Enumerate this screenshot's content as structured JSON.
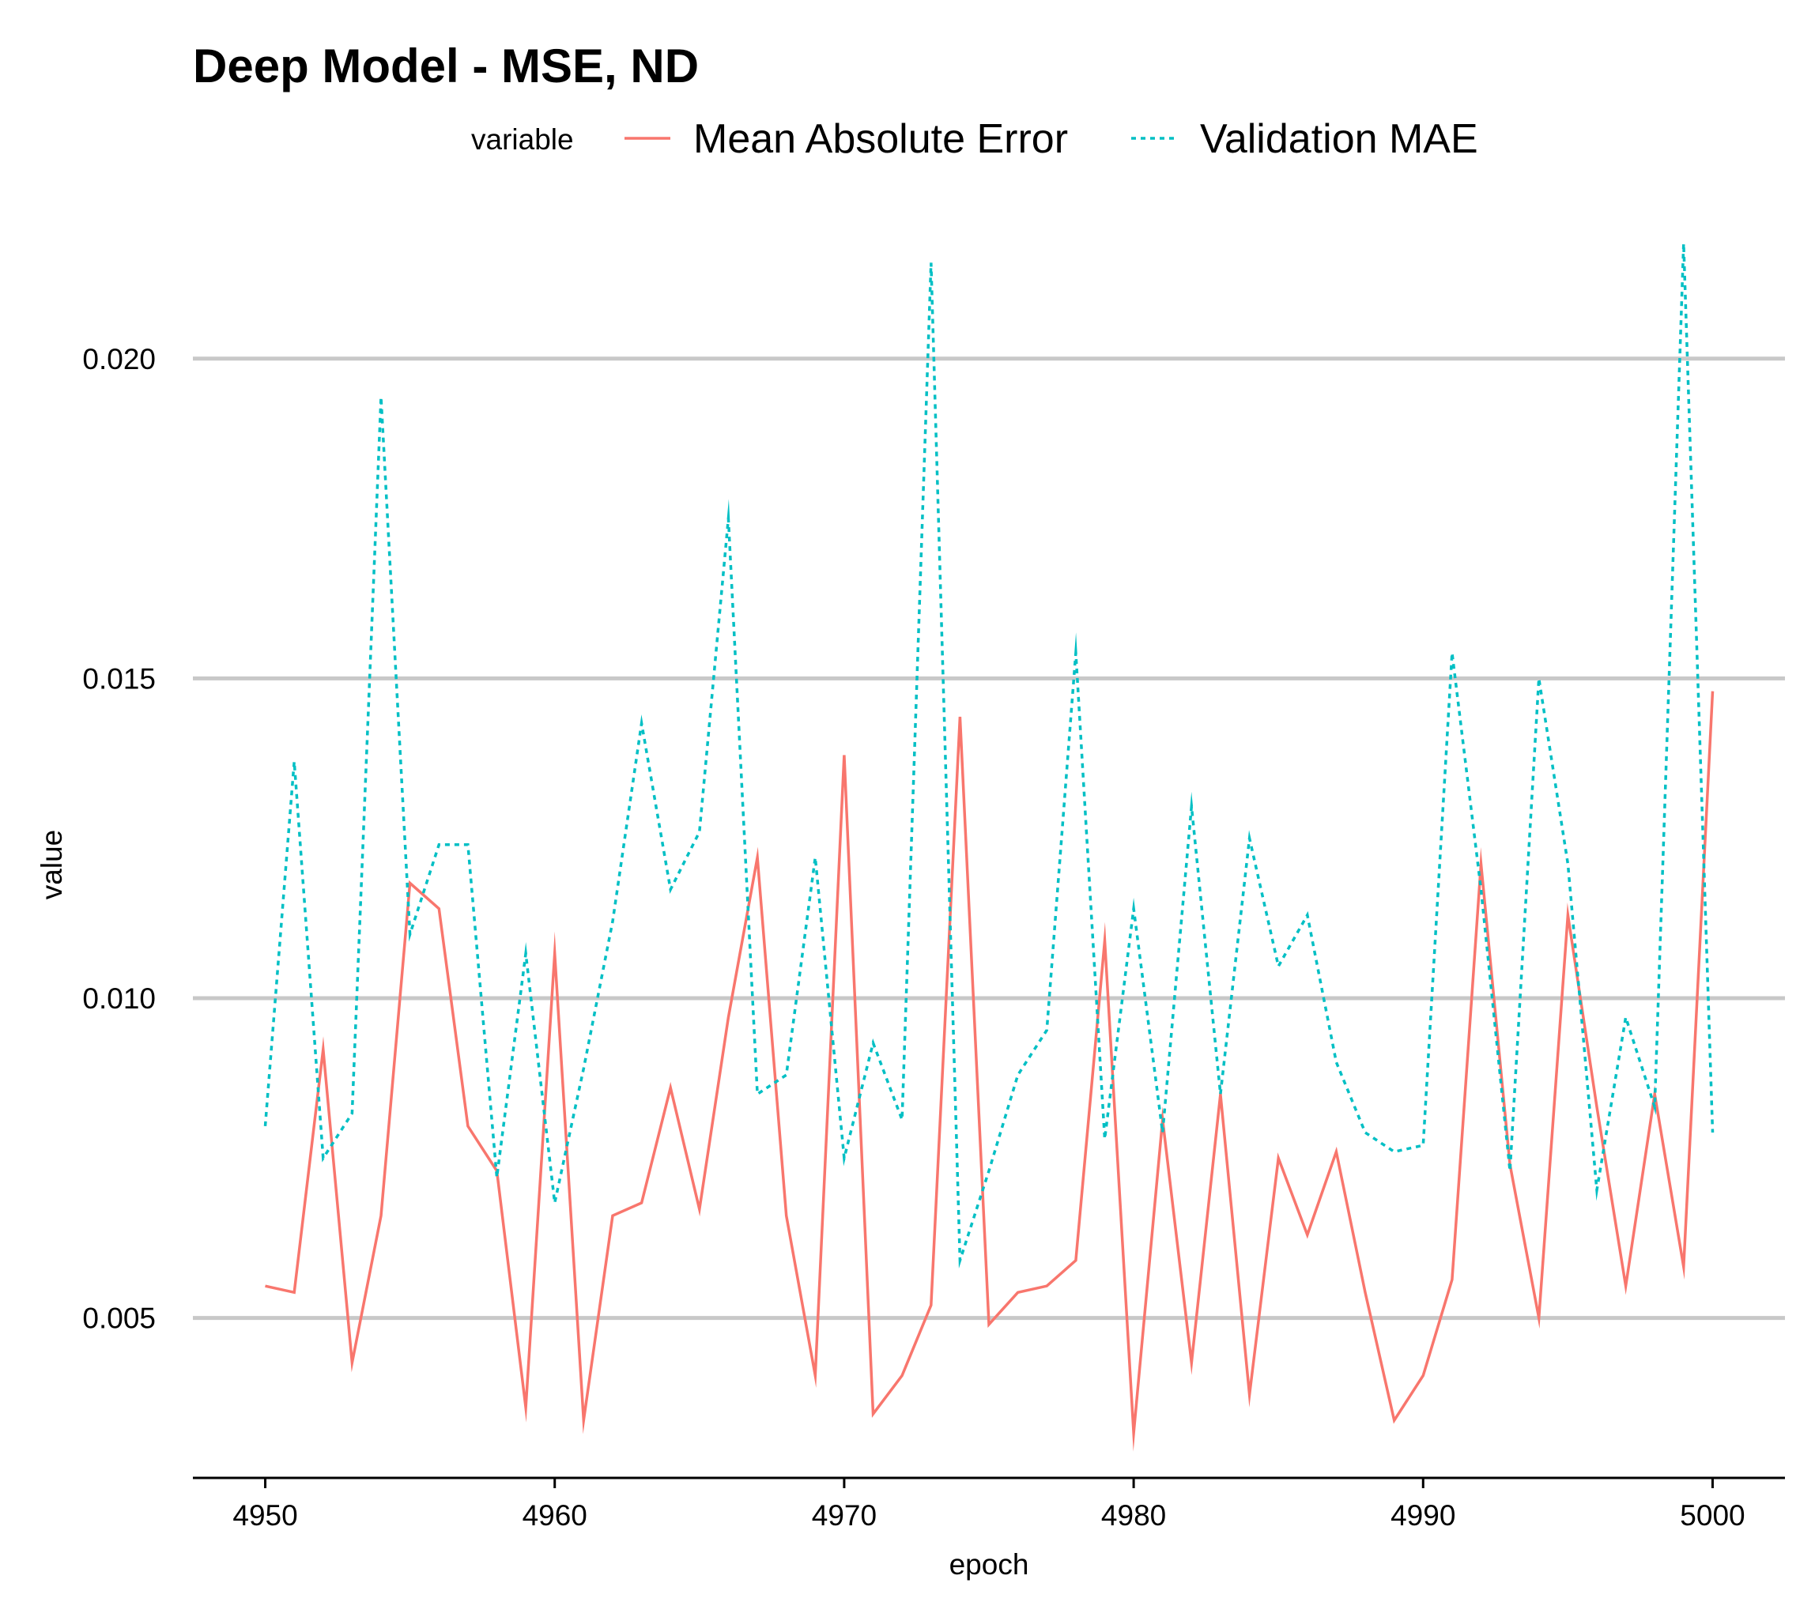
{
  "chart_data": {
    "type": "line",
    "title": "Deep Model - MSE, ND",
    "xlabel": "epoch",
    "ylabel": "value",
    "legend_title": "variable",
    "legend_position": "top",
    "grid": "major-y",
    "xlim": [
      4947.5,
      5002.5
    ],
    "ylim": [
      0.0025,
      0.0219
    ],
    "x_ticks": [
      4950,
      4960,
      4970,
      4980,
      4990,
      5000
    ],
    "x_tick_labels": [
      "4950",
      "4960",
      "4970",
      "4980",
      "4990",
      "5000"
    ],
    "y_ticks": [
      0.005,
      0.01,
      0.015,
      0.02
    ],
    "y_tick_labels": [
      "0.005",
      "0.010",
      "0.015",
      "0.020"
    ],
    "x": [
      4950,
      4951,
      4952,
      4953,
      4954,
      4955,
      4956,
      4957,
      4958,
      4959,
      4960,
      4961,
      4962,
      4963,
      4964,
      4965,
      4966,
      4967,
      4968,
      4969,
      4970,
      4971,
      4972,
      4973,
      4974,
      4975,
      4976,
      4977,
      4978,
      4979,
      4980,
      4981,
      4982,
      4983,
      4984,
      4985,
      4986,
      4987,
      4988,
      4989,
      4990,
      4991,
      4992,
      4993,
      4994,
      4995,
      4996,
      4997,
      4998,
      4999,
      5000
    ],
    "series": [
      {
        "name": "Mean Absolute Error",
        "color": "#F8766D",
        "dash": "solid",
        "values": [
          0.0055,
          0.0054,
          0.0092,
          0.0043,
          0.0066,
          0.0118,
          0.0114,
          0.008,
          0.0073,
          0.0036,
          0.0107,
          0.0034,
          0.0066,
          0.0068,
          0.0086,
          0.0067,
          0.0097,
          0.0122,
          0.0066,
          0.0041,
          0.0138,
          0.0035,
          0.0041,
          0.0052,
          0.0144,
          0.0049,
          0.0054,
          0.0055,
          0.0059,
          0.0109,
          0.0032,
          0.0081,
          0.0043,
          0.0085,
          0.0038,
          0.0075,
          0.0063,
          0.0076,
          0.0054,
          0.0034,
          0.0041,
          0.0056,
          0.0121,
          0.0074,
          0.005,
          0.0113,
          0.0083,
          0.0055,
          0.0085,
          0.0058,
          0.0148
        ]
      },
      {
        "name": "Validation MAE",
        "color": "#00BFC4",
        "dash": "dotted",
        "values": [
          0.008,
          0.0137,
          0.0075,
          0.0082,
          0.0194,
          0.011,
          0.0124,
          0.0124,
          0.0072,
          0.0107,
          0.0068,
          0.0089,
          0.0112,
          0.0143,
          0.0117,
          0.0126,
          0.0175,
          0.0085,
          0.0088,
          0.0122,
          0.0075,
          0.0093,
          0.0081,
          0.0215,
          0.0059,
          0.0073,
          0.0088,
          0.0095,
          0.0154,
          0.0078,
          0.0114,
          0.0079,
          0.013,
          0.0085,
          0.0125,
          0.0105,
          0.0113,
          0.009,
          0.0079,
          0.0076,
          0.0077,
          0.0154,
          0.0117,
          0.0073,
          0.015,
          0.0121,
          0.007,
          0.0097,
          0.0083,
          0.0218,
          0.0079
        ]
      }
    ]
  }
}
